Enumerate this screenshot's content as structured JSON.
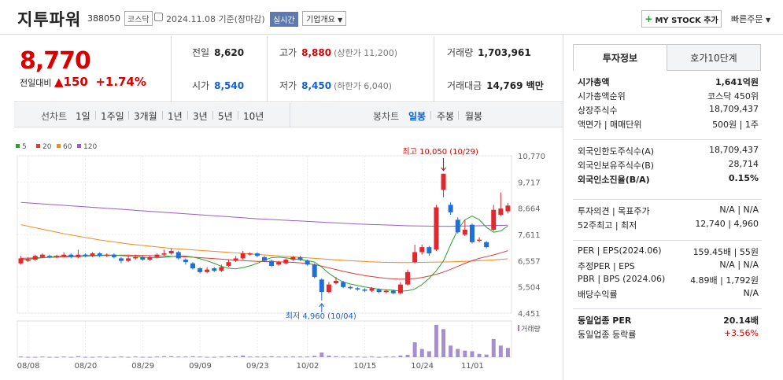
{
  "header": {
    "name": "지투파워",
    "code": "388050",
    "market": "코스닥",
    "date": "2024.11.08 기준(장마감)",
    "realtime": "실시간",
    "company_overview": "기업개요",
    "mystock": "MY STOCK 추가",
    "quick_order": "빠른주문"
  },
  "price": {
    "current": "8,770",
    "change_label": "전일대비",
    "change_arrow": "▲",
    "change": "150",
    "change_pct": "+1.74%"
  },
  "quote": {
    "prev_label": "전일",
    "prev": "8,620",
    "high_label": "고가",
    "high": "8,880",
    "upper_limit": "(상한가 11,200)",
    "volume_label": "거래량",
    "volume": "1,703,961",
    "open_label": "시가",
    "open": "8,540",
    "low_label": "저가",
    "low": "8,450",
    "lower_limit": "(하한가 6,040)",
    "amount_label": "거래대금",
    "amount": "14,769 백만"
  },
  "period_tabs": {
    "line": "선차트",
    "d1": "1일",
    "w1": "1주일",
    "m3": "3개월",
    "y1": "1년",
    "y3": "3년",
    "y5": "5년",
    "y10": "10년",
    "candle": "봉차트",
    "daily": "일봉",
    "weekly": "주봉",
    "monthly": "월봉"
  },
  "chart_data": {
    "type": "candlestick",
    "legend": [
      {
        "name": "5",
        "color": "#2ba02b"
      },
      {
        "name": "20",
        "color": "#e03b3b"
      },
      {
        "name": "60",
        "color": "#f08a1c"
      },
      {
        "name": "120",
        "color": "#9b5cc6"
      }
    ],
    "y_ticks": [
      10770,
      9717,
      8664,
      7611,
      6557,
      5504,
      4451
    ],
    "y_tick_labels": [
      "10,770",
      "9,717",
      "8,664",
      "7,611",
      "6,557",
      "5,504",
      "4,451"
    ],
    "x_labels": [
      "08/08",
      "08/20",
      "08/29",
      "09/09",
      "09/23",
      "10/02",
      "10/15",
      "10/24",
      "11/01"
    ],
    "high_annotation": "최고 10,050 (10/29)",
    "low_annotation": "최저 4,960 (10/04)",
    "volume_label": "거래량",
    "candles": [
      {
        "o": 6450,
        "c": 6650,
        "h": 6750,
        "l": 6400
      },
      {
        "o": 6550,
        "c": 6600,
        "h": 6700,
        "l": 6500
      },
      {
        "o": 6600,
        "c": 6750,
        "h": 6800,
        "l": 6550
      },
      {
        "o": 6700,
        "c": 6800,
        "h": 6850,
        "l": 6650
      },
      {
        "o": 6750,
        "c": 6700,
        "h": 6800,
        "l": 6650
      },
      {
        "o": 6700,
        "c": 6750,
        "h": 6800,
        "l": 6650
      },
      {
        "o": 6750,
        "c": 6800,
        "h": 6900,
        "l": 6700
      },
      {
        "o": 6800,
        "c": 6700,
        "h": 6850,
        "l": 6650
      },
      {
        "o": 6700,
        "c": 6800,
        "h": 7000,
        "l": 6650
      },
      {
        "o": 6800,
        "c": 6750,
        "h": 6850,
        "l": 6700
      },
      {
        "o": 6750,
        "c": 6850,
        "h": 6900,
        "l": 6700
      },
      {
        "o": 6850,
        "c": 6750,
        "h": 6900,
        "l": 6700
      },
      {
        "o": 6750,
        "c": 6800,
        "h": 6850,
        "l": 6700
      },
      {
        "o": 6800,
        "c": 6700,
        "h": 6850,
        "l": 6650
      },
      {
        "o": 6650,
        "c": 6550,
        "h": 6700,
        "l": 6450
      },
      {
        "o": 6550,
        "c": 6650,
        "h": 6750,
        "l": 6500
      },
      {
        "o": 6650,
        "c": 6700,
        "h": 6800,
        "l": 6600
      },
      {
        "o": 6700,
        "c": 6600,
        "h": 6750,
        "l": 6550
      },
      {
        "o": 6600,
        "c": 6700,
        "h": 6750,
        "l": 6550
      },
      {
        "o": 6700,
        "c": 6800,
        "h": 6850,
        "l": 6650
      },
      {
        "o": 6800,
        "c": 6850,
        "h": 7000,
        "l": 6750
      },
      {
        "o": 6850,
        "c": 6950,
        "h": 7050,
        "l": 6800
      },
      {
        "o": 6900,
        "c": 6650,
        "h": 6950,
        "l": 6600
      },
      {
        "o": 6600,
        "c": 6500,
        "h": 6650,
        "l": 6400
      },
      {
        "o": 6450,
        "c": 6250,
        "h": 6500,
        "l": 6200
      },
      {
        "o": 6250,
        "c": 6100,
        "h": 6300,
        "l": 6050
      },
      {
        "o": 6100,
        "c": 6200,
        "h": 6300,
        "l": 6050
      },
      {
        "o": 6250,
        "c": 6150,
        "h": 6300,
        "l": 6100
      },
      {
        "o": 6150,
        "c": 6300,
        "h": 6400,
        "l": 6100
      },
      {
        "o": 6350,
        "c": 6500,
        "h": 6600,
        "l": 6300
      },
      {
        "o": 6550,
        "c": 6650,
        "h": 6750,
        "l": 6500
      },
      {
        "o": 6650,
        "c": 6850,
        "h": 6950,
        "l": 6600
      },
      {
        "o": 6800,
        "c": 6850,
        "h": 6900,
        "l": 6750
      },
      {
        "o": 6850,
        "c": 6750,
        "h": 6900,
        "l": 6700
      },
      {
        "o": 6700,
        "c": 6550,
        "h": 6750,
        "l": 6500
      },
      {
        "o": 6550,
        "c": 6350,
        "h": 6600,
        "l": 6300
      },
      {
        "o": 6400,
        "c": 6500,
        "h": 6550,
        "l": 6350
      },
      {
        "o": 6450,
        "c": 6600,
        "h": 6650,
        "l": 6400
      },
      {
        "o": 6600,
        "c": 6700,
        "h": 6750,
        "l": 6550
      },
      {
        "o": 6700,
        "c": 6600,
        "h": 6750,
        "l": 6550
      },
      {
        "o": 6550,
        "c": 6400,
        "h": 6600,
        "l": 6350
      },
      {
        "o": 6400,
        "c": 5900,
        "h": 6450,
        "l": 5850
      },
      {
        "o": 5800,
        "c": 5300,
        "h": 5850,
        "l": 4960
      },
      {
        "o": 5300,
        "c": 5600,
        "h": 5700,
        "l": 5250
      },
      {
        "o": 5650,
        "c": 5750,
        "h": 5900,
        "l": 5600
      },
      {
        "o": 5700,
        "c": 5500,
        "h": 5750,
        "l": 5450
      },
      {
        "o": 5500,
        "c": 5450,
        "h": 5550,
        "l": 5400
      },
      {
        "o": 5450,
        "c": 5400,
        "h": 5500,
        "l": 5350
      },
      {
        "o": 5400,
        "c": 5350,
        "h": 5450,
        "l": 5300
      },
      {
        "o": 5350,
        "c": 5450,
        "h": 5500,
        "l": 5300
      },
      {
        "o": 5400,
        "c": 5300,
        "h": 5450,
        "l": 5250
      },
      {
        "o": 5300,
        "c": 5350,
        "h": 5400,
        "l": 5250
      },
      {
        "o": 5350,
        "c": 5250,
        "h": 5400,
        "l": 5200
      },
      {
        "o": 5250,
        "c": 5600,
        "h": 5700,
        "l": 5200
      },
      {
        "o": 5600,
        "c": 6100,
        "h": 6200,
        "l": 5550
      },
      {
        "o": 6500,
        "c": 6900,
        "h": 7200,
        "l": 6450
      },
      {
        "o": 6900,
        "c": 7100,
        "h": 7200,
        "l": 6800
      },
      {
        "o": 7100,
        "c": 6850,
        "h": 7150,
        "l": 6750
      },
      {
        "o": 7000,
        "c": 8700,
        "h": 8800,
        "l": 6950
      },
      {
        "o": 9400,
        "c": 10050,
        "h": 10050,
        "l": 9100
      },
      {
        "o": 8800,
        "c": 8500,
        "h": 8900,
        "l": 8400
      },
      {
        "o": 8200,
        "c": 7700,
        "h": 8300,
        "l": 7650
      },
      {
        "o": 7600,
        "c": 7800,
        "h": 8200,
        "l": 7550
      },
      {
        "o": 8000,
        "c": 7300,
        "h": 8050,
        "l": 7250
      },
      {
        "o": 7400,
        "c": 7400,
        "h": 7500,
        "l": 7300
      },
      {
        "o": 7300,
        "c": 7100,
        "h": 7350,
        "l": 7050
      },
      {
        "o": 7800,
        "c": 8600,
        "h": 8800,
        "l": 7750
      },
      {
        "o": 8400,
        "c": 8650,
        "h": 9300,
        "l": 8350
      },
      {
        "o": 8540,
        "c": 8770,
        "h": 8880,
        "l": 8450
      }
    ],
    "ma5": [
      6600,
      6620,
      6640,
      6680,
      6700,
      6720,
      6740,
      6740,
      6750,
      6760,
      6770,
      6775,
      6780,
      6780,
      6760,
      6740,
      6720,
      6700,
      6680,
      6670,
      6690,
      6720,
      6740,
      6740,
      6700,
      6640,
      6550,
      6450,
      6330,
      6250,
      6230,
      6280,
      6350,
      6450,
      6580,
      6680,
      6700,
      6670,
      6630,
      6600,
      6560,
      6500,
      6300,
      6050,
      5850,
      5700,
      5620,
      5560,
      5500,
      5460,
      5410,
      5390,
      5370,
      5330,
      5350,
      5420,
      5600,
      5850,
      6150,
      6550,
      7200,
      7800,
      8200,
      8350,
      8200,
      7900,
      7700,
      7750,
      7950
    ],
    "ma20": [
      6650,
      6660,
      6670,
      6680,
      6690,
      6700,
      6710,
      6720,
      6730,
      6740,
      6750,
      6760,
      6770,
      6775,
      6780,
      6780,
      6775,
      6770,
      6760,
      6750,
      6740,
      6730,
      6720,
      6710,
      6700,
      6680,
      6660,
      6640,
      6620,
      6600,
      6580,
      6560,
      6545,
      6530,
      6520,
      6520,
      6510,
      6500,
      6490,
      6470,
      6440,
      6400,
      6340,
      6270,
      6200,
      6130,
      6070,
      6010,
      5960,
      5920,
      5880,
      5850,
      5830,
      5815,
      5820,
      5840,
      5880,
      5940,
      6010,
      6100,
      6210,
      6330,
      6450,
      6560,
      6650,
      6720,
      6790,
      6870,
      6960
    ],
    "ma60": [
      8000,
      7940,
      7880,
      7820,
      7760,
      7700,
      7640,
      7590,
      7540,
      7490,
      7440,
      7390,
      7350,
      7310,
      7270,
      7230,
      7200,
      7170,
      7140,
      7110,
      7080,
      7050,
      7030,
      7010,
      6990,
      6970,
      6950,
      6930,
      6910,
      6890,
      6870,
      6850,
      6830,
      6810,
      6790,
      6770,
      6750,
      6730,
      6710,
      6690,
      6670,
      6650,
      6630,
      6610,
      6590,
      6570,
      6555,
      6540,
      6525,
      6510,
      6500,
      6490,
      6485,
      6480,
      6480,
      6485,
      6490,
      6495,
      6500,
      6505,
      6510,
      6520,
      6530,
      6540,
      6555,
      6570,
      6590,
      6610,
      6630
    ],
    "ma120": [
      8900,
      8880,
      8860,
      8840,
      8820,
      8800,
      8780,
      8760,
      8740,
      8720,
      8700,
      8680,
      8660,
      8640,
      8620,
      8600,
      8580,
      8560,
      8540,
      8520,
      8500,
      8480,
      8460,
      8440,
      8420,
      8400,
      8380,
      8360,
      8340,
      8320,
      8300,
      8280,
      8260,
      8240,
      8225,
      8210,
      8195,
      8180,
      8165,
      8150,
      8135,
      8120,
      8105,
      8090,
      8075,
      8060,
      8045,
      8030,
      8020,
      8010,
      8000,
      7990,
      7980,
      7970,
      7960,
      7955,
      7950,
      7945,
      7940,
      7940,
      7940,
      7945,
      7950,
      7955,
      7960,
      7965,
      7970,
      7975,
      7980
    ],
    "volumes": [
      0.02,
      0.01,
      0.01,
      0.02,
      0.01,
      0.01,
      0.02,
      0.01,
      0.03,
      0.01,
      0.01,
      0.02,
      0.01,
      0.01,
      0.02,
      0.01,
      0.02,
      0.01,
      0.01,
      0.02,
      0.03,
      0.03,
      0.02,
      0.02,
      0.03,
      0.02,
      0.01,
      0.01,
      0.02,
      0.03,
      0.03,
      0.05,
      0.02,
      0.02,
      0.02,
      0.03,
      0.02,
      0.02,
      0.02,
      0.02,
      0.02,
      0.04,
      0.14,
      0.05,
      0.03,
      0.02,
      0.02,
      0.02,
      0.01,
      0.02,
      0.01,
      0.02,
      0.02,
      0.05,
      0.07,
      0.45,
      0.25,
      0.18,
      0.98,
      0.85,
      0.35,
      0.25,
      0.2,
      0.18,
      0.1,
      0.08,
      0.55,
      0.35,
      0.28
    ]
  },
  "right_panel": {
    "tab_info": "투자정보",
    "tab_quote": "호가10단계",
    "s1": [
      {
        "label": "시가총액",
        "value": "1,641억원",
        "bold": true
      },
      {
        "label": "시가총액순위",
        "value": "코스닥 450위"
      },
      {
        "label": "상장주식수",
        "value": "18,709,437"
      },
      {
        "label": "액면가 | 매매단위",
        "value": "500원 | 1주"
      }
    ],
    "s2": [
      {
        "label": "외국인한도주식수(A)",
        "value": "18,709,437"
      },
      {
        "label": "외국인보유주식수(B)",
        "value": "28,714"
      },
      {
        "label": "외국인소진율(B/A)",
        "value": "0.15%",
        "bold": true
      }
    ],
    "s3": [
      {
        "label": "투자의견 | 목표주가",
        "value": "N/A | N/A"
      },
      {
        "label": "52주최고 | 최저",
        "value": "12,740 | 4,960"
      }
    ],
    "s4": [
      {
        "label": "PER | EPS(2024.06)",
        "value": "159.45배 | 55원"
      },
      {
        "label": "추정PER | EPS",
        "value": "N/A | N/A"
      },
      {
        "label": "PBR | BPS (2024.06)",
        "value": "4.89배 | 1,792원"
      },
      {
        "label": "배당수익률",
        "value": "N/A"
      }
    ],
    "s5": [
      {
        "label": "동일업종 PER",
        "value": "20.14배",
        "bold": true
      },
      {
        "label": "동일업종 등락률",
        "value": "+3.56%",
        "red": true
      }
    ]
  }
}
